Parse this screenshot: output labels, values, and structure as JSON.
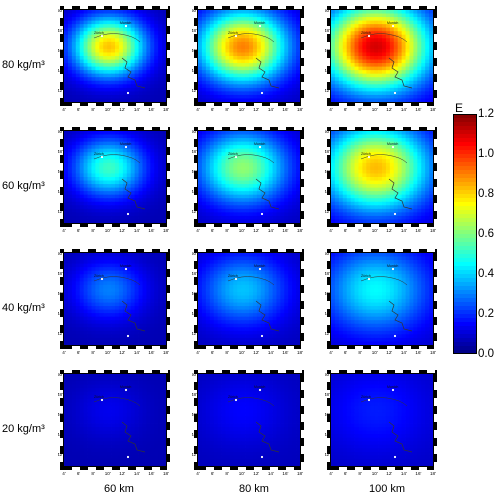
{
  "chart_data": {
    "type": "heatmap",
    "layout": "4 rows x 3 columns of map panels",
    "row_labels": [
      "80 kg/m³",
      "60 kg/m³",
      "40 kg/m³",
      "20 kg/m³"
    ],
    "column_labels": [
      "60 km",
      "80 km",
      "100 km"
    ],
    "x_ticks": [
      "4'",
      "6'",
      "8'",
      "10'",
      "12'",
      "14'",
      "16'",
      "18'"
    ],
    "y_ticks": [
      "50'",
      "48'",
      "46'",
      "44'",
      "42'"
    ],
    "map_labels": [
      "Zürich",
      "Munich"
    ],
    "colorbar": {
      "title": "E",
      "min": 0.0,
      "max": 1.2,
      "ticks": [
        "1.2",
        "1.0",
        "0.8",
        "0.6",
        "0.4",
        "0.2",
        "0.0"
      ],
      "colormap": "jet"
    },
    "panels": [
      {
        "row": 0,
        "col": 0,
        "density": "80 kg/m³",
        "range": "60 km",
        "peak": 0.82
      },
      {
        "row": 0,
        "col": 1,
        "density": "80 kg/m³",
        "range": "80 km",
        "peak": 0.9
      },
      {
        "row": 0,
        "col": 2,
        "density": "80 kg/m³",
        "range": "100 km",
        "peak": 1.1
      },
      {
        "row": 1,
        "col": 0,
        "density": "60 kg/m³",
        "range": "60 km",
        "peak": 0.52
      },
      {
        "row": 1,
        "col": 1,
        "density": "60 kg/m³",
        "range": "80 km",
        "peak": 0.62
      },
      {
        "row": 1,
        "col": 2,
        "density": "60 kg/m³",
        "range": "100 km",
        "peak": 0.83
      },
      {
        "row": 2,
        "col": 0,
        "density": "40 kg/m³",
        "range": "60 km",
        "peak": 0.3
      },
      {
        "row": 2,
        "col": 1,
        "density": "40 kg/m³",
        "range": "80 km",
        "peak": 0.38
      },
      {
        "row": 2,
        "col": 2,
        "density": "40 kg/m³",
        "range": "100 km",
        "peak": 0.45
      },
      {
        "row": 3,
        "col": 0,
        "density": "20 kg/m³",
        "range": "60 km",
        "peak": 0.13
      },
      {
        "row": 3,
        "col": 1,
        "density": "20 kg/m³",
        "range": "80 km",
        "peak": 0.15
      },
      {
        "row": 3,
        "col": 2,
        "density": "20 kg/m³",
        "range": "100 km",
        "peak": 0.18
      }
    ]
  }
}
